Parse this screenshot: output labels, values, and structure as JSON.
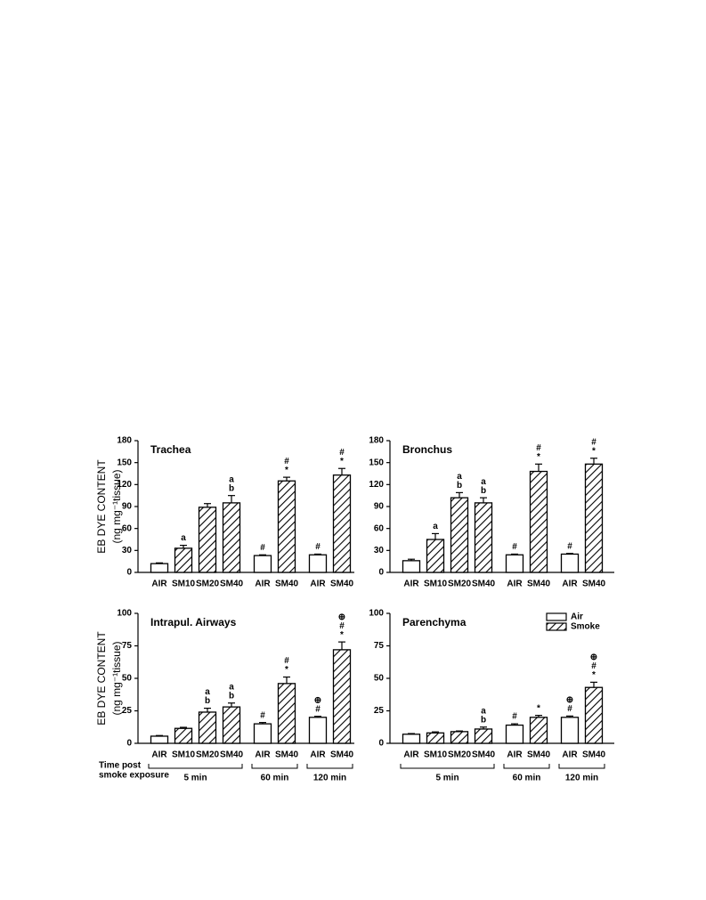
{
  "chart_data": [
    {
      "type": "bar",
      "title": "Trachea",
      "ylabel": [
        "EB DYE CONTENT",
        "(ng mg⁻¹tissue)"
      ],
      "categories": [
        "AIR",
        "SM10",
        "SM20",
        "SM40",
        "AIR",
        "SM40",
        "AIR",
        "SM40"
      ],
      "ylim": [
        0,
        180
      ],
      "yticks": [
        0,
        30,
        60,
        90,
        120,
        150,
        180
      ],
      "series": [
        {
          "color": "#000000",
          "hatch": false,
          "values": [
            12,
            null,
            null,
            null,
            23,
            null,
            24,
            null
          ],
          "errors": [
            1,
            null,
            null,
            null,
            1,
            null,
            1,
            null
          ],
          "annotations": [
            null,
            null,
            null,
            null,
            [
              "#"
            ],
            null,
            [
              "#"
            ],
            null
          ]
        },
        {
          "color": "#000000",
          "hatch": true,
          "values": [
            null,
            33,
            89,
            95,
            null,
            125,
            null,
            133
          ],
          "errors": [
            null,
            4,
            5,
            10,
            null,
            5,
            null,
            9
          ],
          "annotations": [
            null,
            [
              "a"
            ],
            null,
            [
              "a",
              "b"
            ],
            null,
            [
              "#",
              "*"
            ],
            null,
            [
              "#",
              "*"
            ]
          ]
        }
      ]
    },
    {
      "type": "bar",
      "title": "Bronchus",
      "categories": [
        "AIR",
        "SM10",
        "SM20",
        "SM40",
        "AIR",
        "SM40",
        "AIR",
        "SM40"
      ],
      "ylim": [
        0,
        180
      ],
      "yticks": [
        0,
        30,
        60,
        90,
        120,
        150,
        180
      ],
      "series": [
        {
          "color": "#000000",
          "hatch": false,
          "values": [
            16,
            null,
            null,
            null,
            24,
            null,
            25,
            null
          ],
          "errors": [
            2,
            null,
            null,
            null,
            1,
            null,
            1,
            null
          ],
          "annotations": [
            null,
            null,
            null,
            null,
            [
              "#"
            ],
            null,
            [
              "#"
            ],
            null
          ]
        },
        {
          "color": "#000000",
          "hatch": true,
          "values": [
            null,
            45,
            102,
            95,
            null,
            138,
            null,
            148
          ],
          "errors": [
            null,
            8,
            7,
            7,
            null,
            10,
            null,
            8
          ],
          "annotations": [
            null,
            [
              "a"
            ],
            [
              "a",
              "b"
            ],
            [
              "a",
              "b"
            ],
            null,
            [
              "#",
              "*"
            ],
            null,
            [
              "#",
              "*"
            ]
          ]
        }
      ]
    },
    {
      "type": "bar",
      "title": "Intrapul. Airways",
      "ylabel": [
        "EB DYE CONTENT",
        "(ng mg⁻¹tissue)"
      ],
      "categories": [
        "AIR",
        "SM10",
        "SM20",
        "SM40",
        "AIR",
        "SM40",
        "AIR",
        "SM40"
      ],
      "ylim": [
        0,
        100
      ],
      "yticks": [
        0,
        25,
        50,
        75,
        100
      ],
      "time_label": [
        "Time post",
        "smoke exposure"
      ],
      "groups": [
        "5 min",
        "60 min",
        "120 min"
      ],
      "series": [
        {
          "color": "#000000",
          "hatch": false,
          "values": [
            5.5,
            null,
            null,
            null,
            15,
            null,
            20,
            null
          ],
          "errors": [
            0.5,
            null,
            null,
            null,
            1,
            null,
            0.8,
            null
          ],
          "annotations": [
            null,
            null,
            null,
            null,
            [
              "#"
            ],
            null,
            [
              "⊕",
              "#"
            ],
            null
          ]
        },
        {
          "color": "#000000",
          "hatch": true,
          "values": [
            null,
            11.5,
            24,
            28,
            null,
            46,
            null,
            72
          ],
          "errors": [
            null,
            0.8,
            3,
            3,
            null,
            5,
            null,
            6
          ],
          "annotations": [
            null,
            null,
            [
              "a",
              "b"
            ],
            [
              "a",
              "b"
            ],
            null,
            [
              "#",
              "*"
            ],
            null,
            [
              "⊕",
              "#",
              "*"
            ]
          ]
        }
      ]
    },
    {
      "type": "bar",
      "title": "Parenchyma",
      "legend": "upper right",
      "categories": [
        "AIR",
        "SM10",
        "SM20",
        "SM40",
        "AIR",
        "SM40",
        "AIR",
        "SM40"
      ],
      "ylim": [
        0,
        100
      ],
      "yticks": [
        0,
        25,
        50,
        75,
        100
      ],
      "groups": [
        "5 min",
        "60 min",
        "120 min"
      ],
      "series": [
        {
          "name": "Air",
          "color": "#000000",
          "hatch": false,
          "values": [
            7,
            null,
            null,
            null,
            14,
            null,
            20,
            null
          ],
          "errors": [
            0.5,
            null,
            null,
            null,
            1,
            null,
            1,
            null
          ],
          "annotations": [
            null,
            null,
            null,
            null,
            [
              "#"
            ],
            null,
            [
              "⊕",
              "#"
            ],
            null
          ]
        },
        {
          "name": "Smoke",
          "color": "#000000",
          "hatch": true,
          "values": [
            null,
            8,
            9,
            11,
            null,
            20,
            null,
            43
          ],
          "errors": [
            null,
            0.8,
            0.5,
            1.5,
            null,
            1.5,
            null,
            4
          ],
          "annotations": [
            null,
            null,
            null,
            [
              "a",
              "b"
            ],
            null,
            [
              "*"
            ],
            null,
            [
              "⊕",
              "#",
              "*"
            ]
          ]
        }
      ]
    }
  ]
}
